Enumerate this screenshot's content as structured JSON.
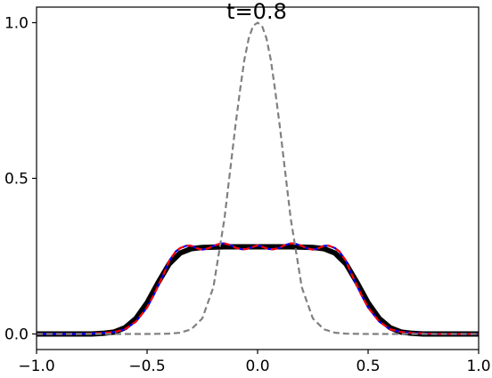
{
  "chart_data": {
    "type": "line",
    "title": "t=0.8",
    "xlabel": "",
    "ylabel": "",
    "xlim": [
      -1.0,
      1.0
    ],
    "ylim": [
      -0.05,
      1.05
    ],
    "grid": false,
    "xticks": [
      -1.0,
      -0.5,
      0.0,
      0.5,
      1.0
    ],
    "xtick_labels": [
      "−1.0",
      "−0.5",
      "0.0",
      "0.5",
      "1.0"
    ],
    "yticks": [
      0.0,
      0.5,
      1.0
    ],
    "ytick_labels": [
      "0.0",
      "0.5",
      "1.0"
    ],
    "series": [
      {
        "color": "#000000",
        "style": "solid-thick",
        "x": [
          -1.0,
          -0.75,
          -0.7,
          -0.65,
          -0.6,
          -0.55,
          -0.5,
          -0.45,
          -0.4,
          -0.35,
          -0.3,
          -0.25,
          -0.2,
          -0.15,
          -0.1,
          -0.05,
          0.0,
          0.05,
          0.1,
          0.15,
          0.2,
          0.25,
          0.3,
          0.35,
          0.4,
          0.45,
          0.5,
          0.55,
          0.6,
          0.65,
          0.7,
          0.75,
          1.0
        ],
        "y": [
          0.0,
          0.0,
          0.002,
          0.006,
          0.02,
          0.05,
          0.1,
          0.165,
          0.225,
          0.26,
          0.274,
          0.278,
          0.279,
          0.28,
          0.28,
          0.28,
          0.28,
          0.28,
          0.28,
          0.28,
          0.279,
          0.278,
          0.274,
          0.26,
          0.225,
          0.165,
          0.1,
          0.05,
          0.02,
          0.006,
          0.002,
          0.0,
          0.0
        ]
      },
      {
        "color": "#0000ff",
        "style": "solid",
        "x": [
          -1.0,
          -0.8,
          -0.7,
          -0.65,
          -0.6,
          -0.55,
          -0.5,
          -0.47,
          -0.45,
          -0.42,
          -0.4,
          -0.37,
          -0.35,
          -0.32,
          -0.3,
          -0.27,
          -0.25,
          -0.22,
          -0.2,
          -0.17,
          -0.15,
          -0.12,
          -0.1,
          -0.07,
          -0.05,
          -0.02,
          0.0,
          0.02,
          0.05,
          0.07,
          0.1,
          0.12,
          0.15,
          0.17,
          0.2,
          0.22,
          0.25,
          0.27,
          0.3,
          0.32,
          0.35,
          0.37,
          0.4,
          0.42,
          0.45,
          0.47,
          0.5,
          0.55,
          0.6,
          0.65,
          0.7,
          0.8,
          1.0
        ],
        "y": [
          0.0,
          0.0,
          0.003,
          0.006,
          0.015,
          0.04,
          0.085,
          0.125,
          0.155,
          0.2,
          0.235,
          0.265,
          0.276,
          0.284,
          0.283,
          0.274,
          0.271,
          0.276,
          0.283,
          0.29,
          0.291,
          0.285,
          0.277,
          0.272,
          0.273,
          0.28,
          0.285,
          0.28,
          0.273,
          0.272,
          0.277,
          0.285,
          0.291,
          0.29,
          0.283,
          0.276,
          0.271,
          0.274,
          0.283,
          0.284,
          0.276,
          0.265,
          0.235,
          0.2,
          0.155,
          0.125,
          0.085,
          0.04,
          0.015,
          0.006,
          0.003,
          0.0,
          0.0
        ]
      },
      {
        "color": "#ff0000",
        "style": "dashed",
        "x": [
          -1.0,
          -0.8,
          -0.7,
          -0.65,
          -0.6,
          -0.55,
          -0.5,
          -0.47,
          -0.45,
          -0.42,
          -0.4,
          -0.37,
          -0.35,
          -0.32,
          -0.3,
          -0.27,
          -0.25,
          -0.22,
          -0.2,
          -0.17,
          -0.15,
          -0.12,
          -0.1,
          -0.07,
          -0.05,
          -0.02,
          0.0,
          0.02,
          0.05,
          0.07,
          0.1,
          0.12,
          0.15,
          0.17,
          0.2,
          0.22,
          0.25,
          0.27,
          0.3,
          0.32,
          0.35,
          0.37,
          0.4,
          0.42,
          0.45,
          0.47,
          0.5,
          0.55,
          0.6,
          0.65,
          0.7,
          0.8,
          1.0
        ],
        "y": [
          0.0,
          0.0,
          0.003,
          0.006,
          0.015,
          0.04,
          0.085,
          0.125,
          0.155,
          0.2,
          0.235,
          0.265,
          0.276,
          0.284,
          0.283,
          0.274,
          0.271,
          0.276,
          0.283,
          0.29,
          0.291,
          0.285,
          0.277,
          0.272,
          0.273,
          0.28,
          0.285,
          0.28,
          0.273,
          0.272,
          0.277,
          0.285,
          0.291,
          0.29,
          0.283,
          0.276,
          0.271,
          0.274,
          0.283,
          0.284,
          0.276,
          0.265,
          0.235,
          0.2,
          0.155,
          0.125,
          0.085,
          0.04,
          0.015,
          0.006,
          0.003,
          0.0,
          0.0
        ]
      },
      {
        "color": "#808080",
        "style": "dashed",
        "x": [
          -1.0,
          -0.6,
          -0.5,
          -0.4,
          -0.35,
          -0.3,
          -0.25,
          -0.2,
          -0.15,
          -0.1,
          -0.08,
          -0.06,
          -0.04,
          -0.02,
          0.0,
          0.02,
          0.04,
          0.06,
          0.08,
          0.1,
          0.15,
          0.2,
          0.25,
          0.3,
          0.35,
          0.4,
          0.5,
          0.6,
          1.0
        ],
        "y": [
          0.0,
          0.0,
          0.0,
          0.001,
          0.004,
          0.015,
          0.05,
          0.15,
          0.37,
          0.67,
          0.78,
          0.88,
          0.95,
          0.99,
          1.0,
          0.99,
          0.95,
          0.88,
          0.78,
          0.67,
          0.37,
          0.15,
          0.05,
          0.015,
          0.004,
          0.001,
          0.0,
          0.0,
          0.0
        ]
      }
    ]
  }
}
